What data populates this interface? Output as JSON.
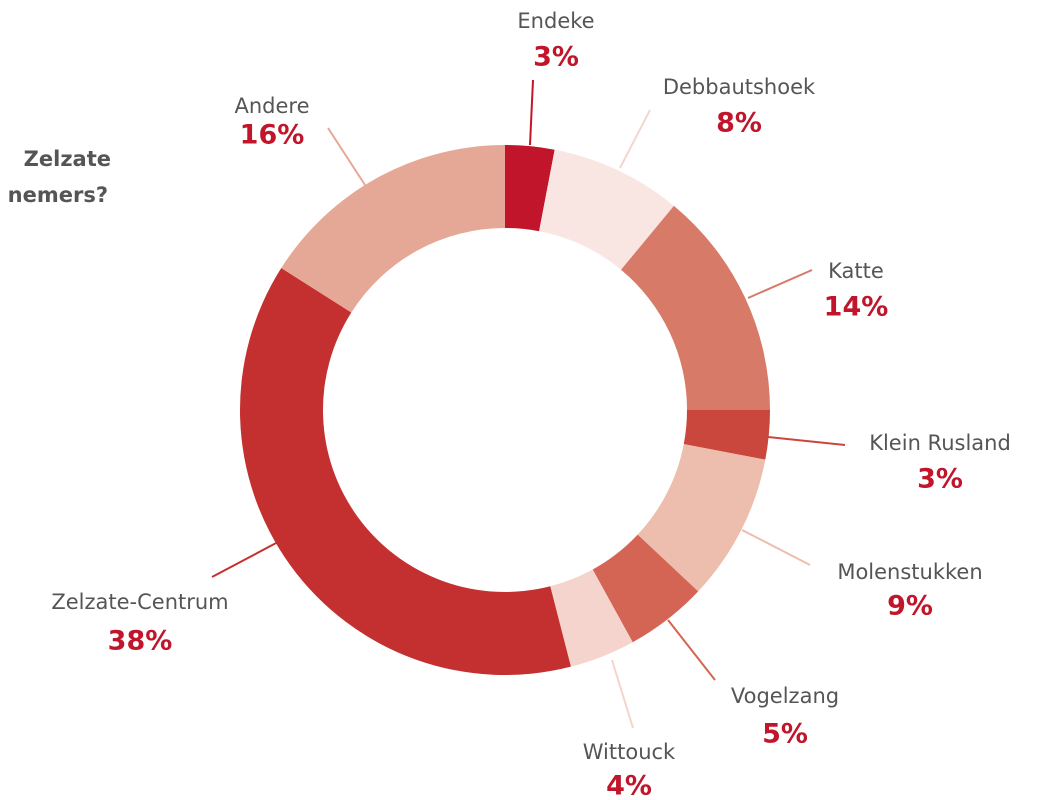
{
  "chart_data": {
    "type": "donut",
    "title_lines": [
      "Zelzate",
      "nemers?"
    ],
    "categories": [
      "Endeke",
      "Debbautshoek",
      "Katte",
      "Klein Rusland",
      "Molenstukken",
      "Vogelzang",
      "Wittouck",
      "Zelzate-Centrum",
      "Andere"
    ],
    "values": [
      3,
      8,
      14,
      3,
      9,
      5,
      4,
      38,
      16
    ],
    "value_labels": [
      "3%",
      "8%",
      "14%",
      "3%",
      "9%",
      "5%",
      "4%",
      "38%",
      "16%"
    ],
    "colors": [
      "#c0152a",
      "#f9e6e2",
      "#d87a68",
      "#c9473c",
      "#edbdad",
      "#d46453",
      "#f4d4cc",
      "#c4302f",
      "#e6a896"
    ]
  }
}
